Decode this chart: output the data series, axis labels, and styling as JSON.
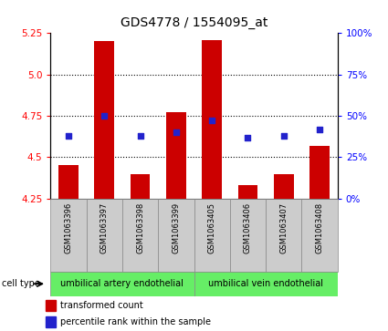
{
  "title": "GDS4778 / 1554095_at",
  "samples": [
    "GSM1063396",
    "GSM1063397",
    "GSM1063398",
    "GSM1063399",
    "GSM1063405",
    "GSM1063406",
    "GSM1063407",
    "GSM1063408"
  ],
  "transformed_count": [
    4.45,
    5.2,
    4.4,
    4.77,
    5.21,
    4.33,
    4.4,
    4.57
  ],
  "percentile_rank": [
    4.63,
    4.75,
    4.63,
    4.65,
    4.72,
    4.62,
    4.63,
    4.67
  ],
  "bar_bottom": 4.25,
  "ylim": [
    4.25,
    5.25
  ],
  "yticks_left": [
    4.25,
    4.5,
    4.75,
    5.0,
    5.25
  ],
  "yticks_right": [
    0,
    25,
    50,
    75,
    100
  ],
  "bar_color": "#cc0000",
  "dot_color": "#2222cc",
  "cell_type_groups": [
    {
      "label": "umbilical artery endothelial",
      "start": 0,
      "end": 3,
      "color": "#66ee66"
    },
    {
      "label": "umbilical vein endothelial",
      "start": 4,
      "end": 7,
      "color": "#66ee66"
    }
  ],
  "legend_bar_label": "transformed count",
  "legend_dot_label": "percentile rank within the sample",
  "cell_type_label": "cell type",
  "bar_width": 0.55,
  "title_fontsize": 10,
  "sample_label_fontsize": 6,
  "tick_label_fontsize": 7.5,
  "legend_fontsize": 7,
  "cell_type_fontsize": 7,
  "group_label_fontsize": 7,
  "sample_box_color": "#cccccc",
  "sample_box_edge_color": "#888888"
}
